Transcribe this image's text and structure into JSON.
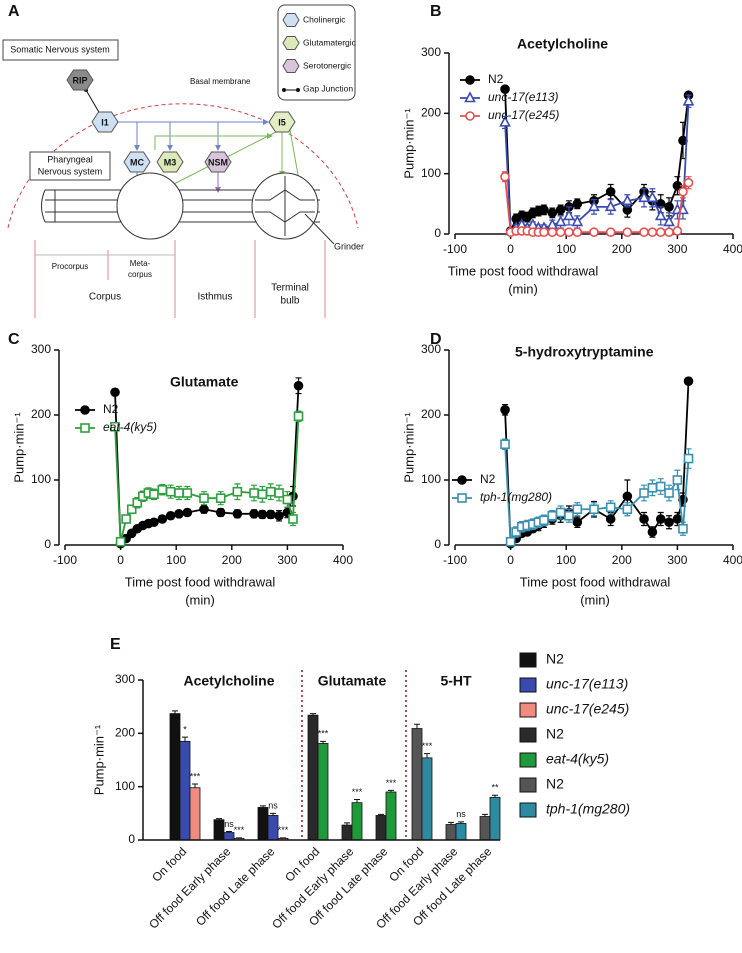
{
  "diagram": {
    "panel": "A",
    "somatic": "Somatic Nervous system",
    "pharyngeal": [
      "Pharyngeal",
      "Nervous system"
    ],
    "basal": "Basal membrane",
    "neurons": [
      "RIP",
      "I1",
      "I5",
      "MC",
      "M3",
      "NSM"
    ],
    "legend": [
      "Cholinergic",
      "Glutamatergic",
      "Serotonergic",
      "Gap Junction"
    ],
    "grinder": "Grinder",
    "regions": [
      [
        "Procorpus"
      ],
      [
        "Meta-",
        "corpus"
      ],
      [
        "Isthmus"
      ],
      [
        "Terminal",
        "bulb"
      ]
    ],
    "corpus": "Corpus"
  },
  "chart_data": [
    {
      "type": "line",
      "panel": "B",
      "title": "Acetylcholine",
      "xlabel": [
        "Time post food withdrawal",
        "(min)"
      ],
      "ylabel": "Pump·min⁻¹",
      "x": [
        -10,
        0,
        10,
        20,
        30,
        40,
        50,
        60,
        75,
        90,
        105,
        120,
        150,
        180,
        210,
        240,
        255,
        270,
        285,
        300,
        310,
        320
      ],
      "xlim": [
        -100,
        400
      ],
      "xticks": [
        -100,
        0,
        100,
        200,
        300,
        400
      ],
      "ylim": [
        0,
        300
      ],
      "yticks": [
        0,
        100,
        200,
        300
      ],
      "series": [
        {
          "name": "N2",
          "color": "#000000",
          "marker": "circle",
          "filled": true,
          "values": [
            240,
            5,
            25,
            30,
            28,
            35,
            38,
            40,
            35,
            40,
            45,
            50,
            55,
            70,
            40,
            70,
            55,
            50,
            45,
            80,
            155,
            230
          ],
          "errors": [
            0,
            3,
            8,
            8,
            8,
            8,
            8,
            8,
            8,
            8,
            10,
            8,
            10,
            12,
            12,
            12,
            15,
            15,
            15,
            15,
            30,
            5
          ]
        },
        {
          "name": "unc-17(e113)",
          "color": "#3a4bb0",
          "marker": "triangle",
          "filled": false,
          "values": [
            185,
            5,
            10,
            15,
            10,
            15,
            10,
            10,
            15,
            20,
            30,
            20,
            45,
            45,
            55,
            60,
            60,
            30,
            20,
            40,
            40,
            220
          ],
          "errors": [
            10,
            3,
            5,
            5,
            5,
            5,
            5,
            5,
            8,
            10,
            15,
            10,
            12,
            12,
            10,
            15,
            15,
            15,
            15,
            15,
            15,
            10
          ]
        },
        {
          "name": "unc-17(e245)",
          "color": "#e05050",
          "marker": "circle",
          "filled": false,
          "values": [
            95,
            3,
            5,
            5,
            5,
            3,
            3,
            3,
            3,
            3,
            3,
            3,
            3,
            3,
            3,
            3,
            3,
            3,
            3,
            5,
            70,
            85
          ],
          "errors": [
            8,
            1,
            2,
            2,
            2,
            1,
            1,
            1,
            1,
            1,
            1,
            1,
            1,
            1,
            1,
            1,
            1,
            1,
            1,
            3,
            10,
            10
          ]
        }
      ]
    },
    {
      "type": "line",
      "panel": "C",
      "title": "Glutamate",
      "xlabel": [
        "Time post food withdrawal",
        "(min)"
      ],
      "ylabel": "Pump·min⁻¹",
      "x": [
        -10,
        0,
        10,
        20,
        30,
        40,
        50,
        60,
        75,
        90,
        105,
        120,
        150,
        180,
        210,
        240,
        255,
        270,
        285,
        300,
        310,
        320
      ],
      "xlim": [
        -100,
        400
      ],
      "xticks": [
        -100,
        0,
        100,
        200,
        300,
        400
      ],
      "ylim": [
        0,
        300
      ],
      "yticks": [
        0,
        100,
        200,
        300
      ],
      "series": [
        {
          "name": "N2",
          "color": "#000000",
          "marker": "circle",
          "filled": true,
          "values": [
            235,
            2,
            10,
            18,
            25,
            30,
            33,
            35,
            40,
            45,
            48,
            50,
            55,
            50,
            48,
            48,
            47,
            47,
            45,
            50,
            75,
            245
          ],
          "errors": [
            5,
            2,
            3,
            4,
            4,
            4,
            4,
            4,
            5,
            5,
            5,
            5,
            6,
            6,
            6,
            6,
            6,
            6,
            8,
            8,
            15,
            12
          ]
        },
        {
          "name": "eat-4(ky5)",
          "color": "#2e9e3e",
          "marker": "square",
          "filled": false,
          "values": [
            182,
            5,
            40,
            55,
            65,
            75,
            80,
            78,
            85,
            82,
            80,
            80,
            72,
            72,
            82,
            80,
            78,
            82,
            80,
            70,
            40,
            198
          ],
          "errors": [
            4,
            3,
            6,
            6,
            8,
            8,
            8,
            8,
            8,
            10,
            10,
            10,
            10,
            10,
            12,
            12,
            12,
            12,
            12,
            12,
            10,
            8
          ]
        }
      ]
    },
    {
      "type": "line",
      "panel": "D",
      "title": "5-hydroxytryptamine",
      "xlabel": [
        "Time post food withdrawal",
        "(min)"
      ],
      "ylabel": "Pump·min⁻¹",
      "x": [
        -10,
        0,
        10,
        20,
        30,
        40,
        50,
        60,
        75,
        90,
        105,
        120,
        150,
        180,
        210,
        240,
        255,
        270,
        285,
        300,
        310,
        320
      ],
      "xlim": [
        -100,
        400
      ],
      "xticks": [
        -100,
        0,
        100,
        200,
        300,
        400
      ],
      "ylim": [
        0,
        300
      ],
      "yticks": [
        0,
        100,
        200,
        300
      ],
      "series": [
        {
          "name": "N2",
          "color": "#000000",
          "marker": "circle",
          "filled": true,
          "values": [
            208,
            2,
            10,
            18,
            20,
            25,
            30,
            35,
            40,
            45,
            50,
            35,
            55,
            40,
            75,
            40,
            20,
            40,
            35,
            40,
            70,
            252
          ],
          "errors": [
            8,
            2,
            5,
            5,
            5,
            5,
            8,
            8,
            8,
            10,
            10,
            8,
            12,
            10,
            25,
            10,
            8,
            10,
            10,
            10,
            10,
            5
          ]
        },
        {
          "name": "tph-1(mg280)",
          "color": "#3a8fb0",
          "marker": "square",
          "filled": false,
          "values": [
            155,
            5,
            20,
            28,
            30,
            32,
            35,
            38,
            45,
            50,
            45,
            55,
            55,
            58,
            55,
            80,
            88,
            90,
            80,
            100,
            25,
            133
          ],
          "errors": [
            8,
            3,
            8,
            8,
            8,
            8,
            8,
            8,
            8,
            10,
            10,
            10,
            10,
            10,
            10,
            12,
            12,
            12,
            12,
            15,
            10,
            15
          ]
        }
      ]
    },
    {
      "type": "bar",
      "panel": "E",
      "ylabel": "Pump·min⁻¹",
      "ylim": [
        0,
        300
      ],
      "yticks": [
        0,
        100,
        200,
        300
      ],
      "categories": [
        "On food",
        "Off food Early phase",
        "Off food Late phase"
      ],
      "groups": [
        {
          "name": "Acetylcholine",
          "series": [
            {
              "name": "N2",
              "color": "#111111",
              "values": [
                237,
                38,
                61
              ],
              "errors": [
                5,
                2,
                3
              ]
            },
            {
              "name": "unc-17(e113)",
              "color": "#3a4bb0",
              "values": [
                185,
                14,
                46
              ],
              "errors": [
                8,
                2,
                4
              ],
              "significance": [
                "*",
                "ns",
                "ns"
              ]
            },
            {
              "name": "unc-17(e245)",
              "color": "#f08b80",
              "values": [
                98,
                3,
                3
              ],
              "errors": [
                7,
                1,
                1
              ],
              "significance": [
                "***",
                "***",
                "***"
              ]
            }
          ]
        },
        {
          "name": "Glutamate",
          "series": [
            {
              "name": "N2",
              "color": "#2a2a2a",
              "values": [
                234,
                28,
                46
              ],
              "errors": [
                3,
                4,
                2
              ]
            },
            {
              "name": "eat-4(ky5)",
              "color": "#1f9a3a",
              "values": [
                181,
                70,
                90
              ],
              "errors": [
                4,
                6,
                3
              ],
              "significance": [
                "***",
                "***",
                "***"
              ]
            }
          ]
        },
        {
          "name": "5-HT",
          "series": [
            {
              "name": "N2",
              "color": "#555555",
              "values": [
                209,
                29,
                44
              ],
              "errors": [
                8,
                4,
                4
              ]
            },
            {
              "name": "tph-1(mg280)",
              "color": "#2e8aa0",
              "values": [
                154,
                31,
                80
              ],
              "errors": [
                8,
                3,
                4
              ],
              "significance": [
                "***",
                "ns",
                "**"
              ]
            }
          ]
        }
      ]
    }
  ]
}
